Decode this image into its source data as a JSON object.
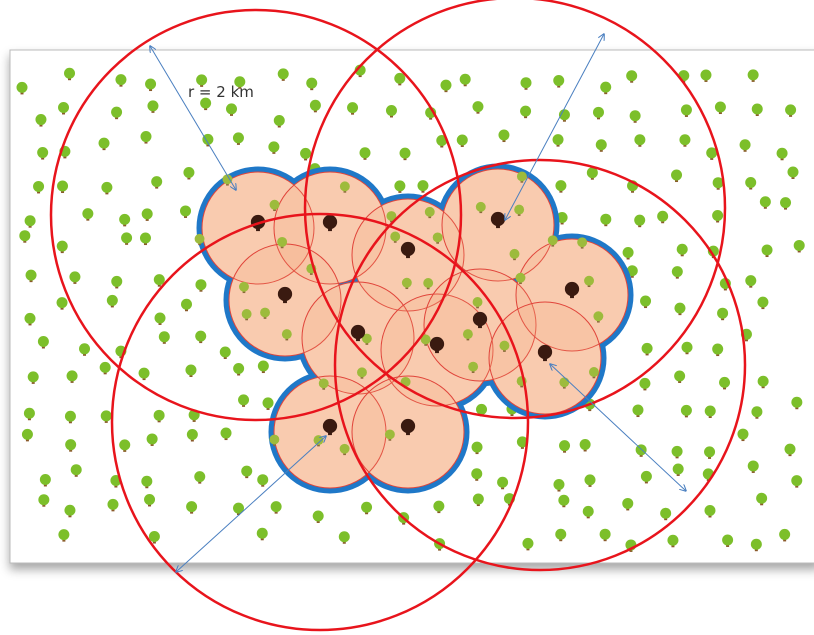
{
  "annotation": {
    "label": "r = 2 km"
  }
}
